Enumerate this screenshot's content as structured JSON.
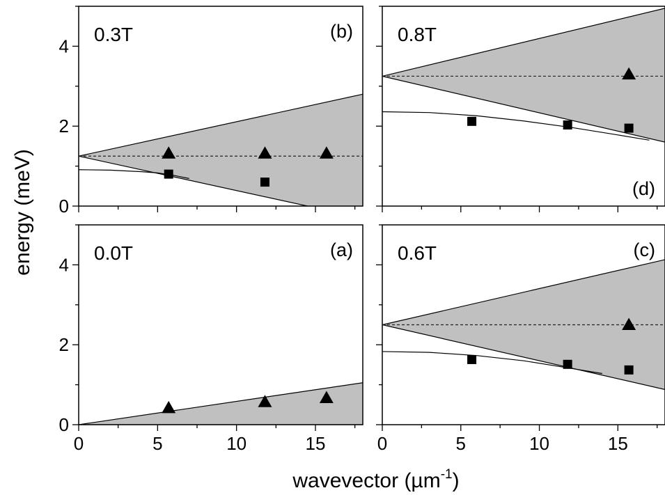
{
  "chart_data": {
    "type": "scatter",
    "xlabel_main": "wavevector (µm",
    "xlabel_sup": "-1",
    "xlabel_close": ")",
    "ylabel": "energy (meV)",
    "xlim": [
      0,
      18
    ],
    "ylim": [
      0,
      5
    ],
    "xticks": [
      "0",
      "5",
      "10",
      "15"
    ],
    "yticks": [
      "0",
      "2",
      "4"
    ],
    "colors": {
      "fill": "#c0c0c0",
      "line": "#000000"
    },
    "panels": [
      {
        "id": "b",
        "position": "top-left",
        "field": "0.3T",
        "label": "(b)",
        "label_place": "top-right",
        "show_y_ticks": true,
        "show_x_ticks": false,
        "cone": {
          "apex": [
            0,
            1.25
          ],
          "upper_end": [
            18,
            2.8
          ],
          "lower_end": [
            14.5,
            0
          ]
        },
        "dashed_y": 1.25,
        "curve": [
          [
            0,
            0.91
          ],
          [
            2,
            0.9
          ],
          [
            4,
            0.86
          ],
          [
            5,
            0.83
          ],
          [
            6,
            0.77
          ],
          [
            7,
            0.69
          ]
        ],
        "triangles": [
          [
            5.7,
            1.32
          ],
          [
            11.8,
            1.32
          ],
          [
            15.7,
            1.32
          ]
        ],
        "squares": [
          [
            5.7,
            0.8
          ],
          [
            11.8,
            0.6
          ]
        ]
      },
      {
        "id": "d",
        "position": "top-right",
        "field": "0.8T",
        "label": "(d)",
        "label_place": "bottom-right",
        "show_y_ticks": false,
        "show_x_ticks": false,
        "cone": {
          "apex": [
            0,
            3.25
          ],
          "upper_end": [
            18,
            4.95
          ],
          "lower_end": [
            18,
            1.6
          ]
        },
        "dashed_y": 3.25,
        "curve": [
          [
            0,
            2.36
          ],
          [
            3,
            2.34
          ],
          [
            6,
            2.26
          ],
          [
            9,
            2.13
          ],
          [
            12,
            1.97
          ],
          [
            15,
            1.78
          ],
          [
            17,
            1.65
          ]
        ],
        "triangles": [
          [
            15.7,
            3.3
          ]
        ],
        "squares": [
          [
            5.7,
            2.12
          ],
          [
            11.8,
            2.03
          ],
          [
            15.7,
            1.95
          ]
        ]
      },
      {
        "id": "a",
        "position": "bottom-left",
        "field": "0.0T",
        "label": "(a)",
        "label_place": "top-right",
        "show_y_ticks": true,
        "show_x_ticks": true,
        "cone": {
          "apex": [
            0,
            0
          ],
          "upper_end": [
            18,
            1.05
          ],
          "lower_end": [
            18,
            0
          ]
        },
        "dashed_y": null,
        "curve": [],
        "triangles": [
          [
            5.7,
            0.42
          ],
          [
            11.8,
            0.57
          ],
          [
            15.7,
            0.67
          ]
        ],
        "squares": []
      },
      {
        "id": "c",
        "position": "bottom-right",
        "field": "0.6T",
        "label": "(c)",
        "label_place": "top-right",
        "show_y_ticks": false,
        "show_x_ticks": true,
        "cone": {
          "apex": [
            0,
            2.5
          ],
          "upper_end": [
            18,
            4.13
          ],
          "lower_end": [
            18,
            0.88
          ]
        },
        "dashed_y": 2.5,
        "curve": [
          [
            0,
            1.83
          ],
          [
            3,
            1.81
          ],
          [
            6,
            1.73
          ],
          [
            9,
            1.6
          ],
          [
            12,
            1.41
          ],
          [
            14,
            1.28
          ]
        ],
        "triangles": [
          [
            15.7,
            2.5
          ]
        ],
        "squares": [
          [
            5.7,
            1.63
          ],
          [
            11.8,
            1.51
          ],
          [
            15.7,
            1.37
          ]
        ]
      }
    ]
  }
}
